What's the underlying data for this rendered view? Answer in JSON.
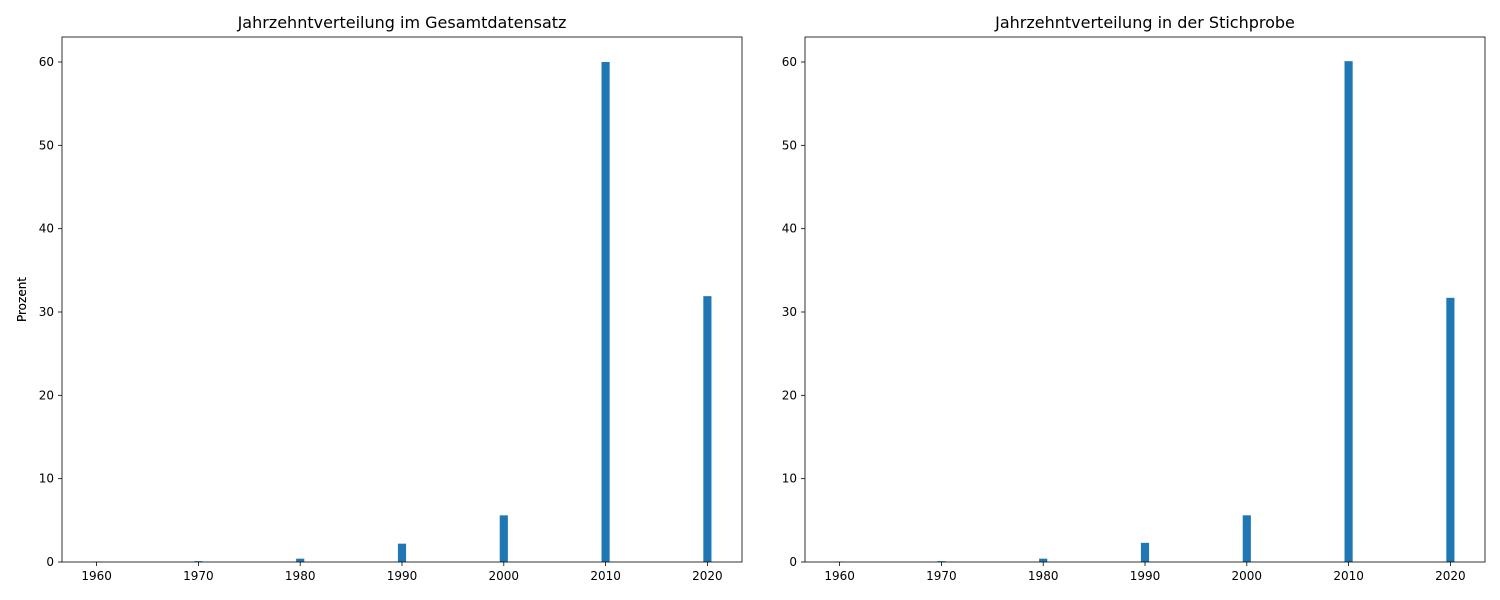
{
  "chart_data": [
    {
      "type": "bar",
      "title": "Jahrzehntverteilung im Gesamtdatensatz",
      "xlabel": "",
      "ylabel": "Prozent",
      "categories": [
        1960,
        1970,
        1980,
        1990,
        2000,
        2010,
        2020
      ],
      "values": [
        0.05,
        0.1,
        0.4,
        2.2,
        5.6,
        60.0,
        31.9
      ],
      "xlim": [
        1956.6,
        2023.4
      ],
      "ylim": [
        0,
        63
      ],
      "x_ticks": [
        1960,
        1970,
        1980,
        1990,
        2000,
        2010,
        2020
      ],
      "y_ticks": [
        0,
        10,
        20,
        30,
        40,
        50,
        60
      ],
      "bar_color": "#1f77b4",
      "grid": false
    },
    {
      "type": "bar",
      "title": "Jahrzehntverteilung in der Stichprobe",
      "xlabel": "",
      "ylabel": "Prozent",
      "categories": [
        1960,
        1970,
        1980,
        1990,
        2000,
        2010,
        2020
      ],
      "values": [
        0.05,
        0.1,
        0.4,
        2.3,
        5.6,
        60.1,
        31.7
      ],
      "xlim": [
        1956.6,
        2023.4
      ],
      "ylim": [
        0,
        63
      ],
      "x_ticks": [
        1960,
        1970,
        1980,
        1990,
        2000,
        2010,
        2020
      ],
      "y_ticks": [
        0,
        10,
        20,
        30,
        40,
        50,
        60
      ],
      "bar_color": "#1f77b4",
      "grid": false
    }
  ]
}
